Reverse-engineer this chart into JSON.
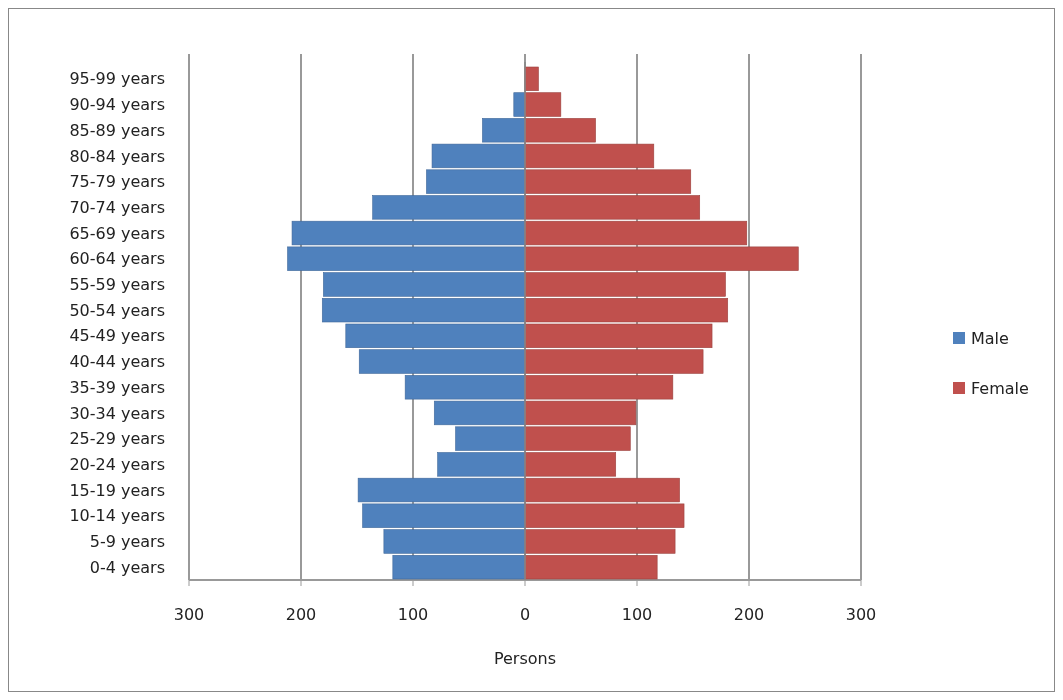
{
  "chart_data": {
    "type": "bar",
    "orientation": "horizontal",
    "stacked": true,
    "xlabel": "Persons",
    "categories": [
      "95-99 years",
      "90-94 years",
      "85-89 years",
      "80-84 years",
      "75-79 years",
      "70-74 years",
      "65-69 years",
      "60-64 years",
      "55-59 years",
      "50-54 years",
      "45-49 years",
      "40-44 years",
      "35-39 years",
      "30-34 years",
      "25-29 years",
      "20-24 years",
      "15-19 years",
      "10-14 years",
      "5-9 years",
      "0-4 years"
    ],
    "series": [
      {
        "name": "Male",
        "color": "#4f81bd",
        "values": [
          0,
          -10,
          -38,
          -83,
          -88,
          -136,
          -208,
          -212,
          -180,
          -181,
          -160,
          -148,
          -107,
          -81,
          -62,
          -78,
          -149,
          -145,
          -126,
          -118
        ]
      },
      {
        "name": "Female",
        "color": "#c0504d",
        "values": [
          12,
          32,
          63,
          115,
          148,
          156,
          198,
          244,
          179,
          181,
          167,
          159,
          132,
          99,
          94,
          81,
          138,
          142,
          134,
          118
        ]
      }
    ],
    "xlim": [
      -300,
      300
    ],
    "xticks": [
      {
        "value": -300,
        "label": "300"
      },
      {
        "value": -200,
        "label": "200"
      },
      {
        "value": -100,
        "label": "100"
      },
      0,
      100,
      200,
      300
    ],
    "grid": "x",
    "legend": "right"
  }
}
